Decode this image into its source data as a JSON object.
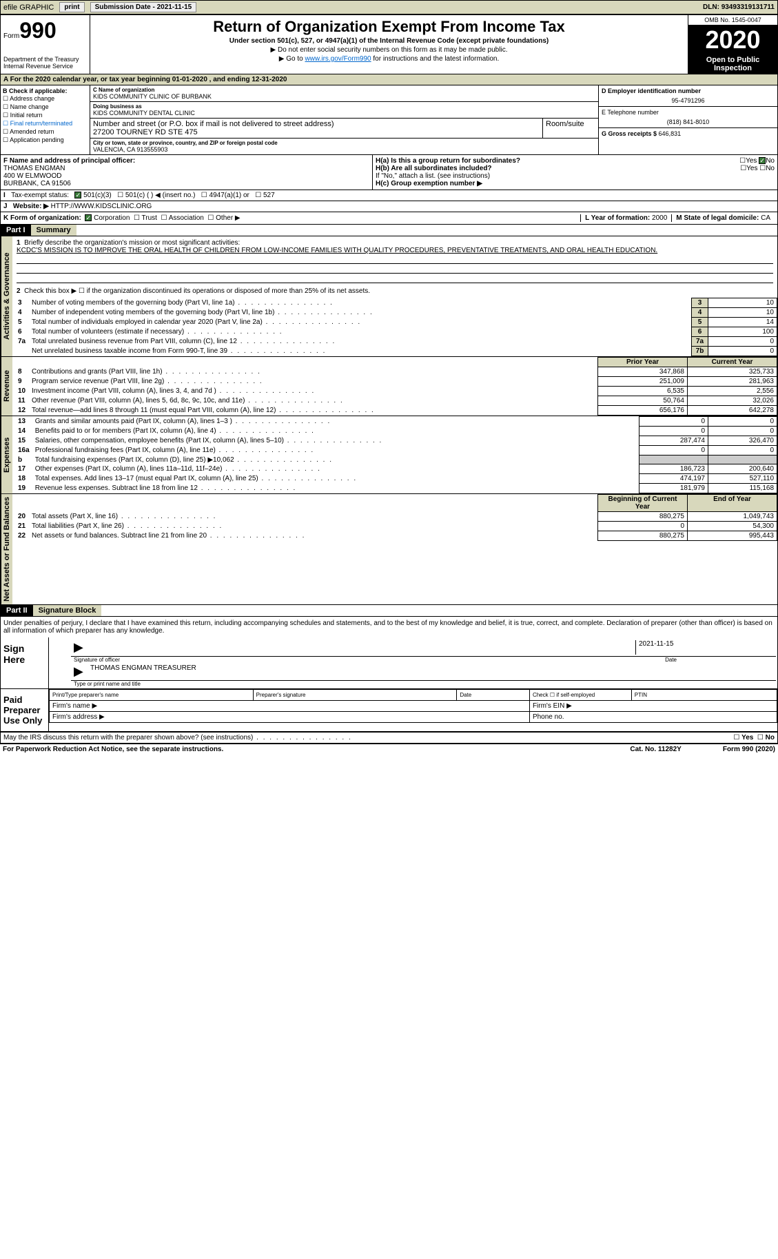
{
  "top": {
    "efile": "efile GRAPHIC",
    "print": "print",
    "subdate_lbl": "Submission Date - ",
    "subdate": "2021-11-15",
    "dln_lbl": "DLN: ",
    "dln": "93493319131711"
  },
  "header": {
    "form_word": "Form",
    "form_num": "990",
    "dept": "Department of the Treasury\nInternal Revenue Service",
    "title": "Return of Organization Exempt From Income Tax",
    "sub1": "Under section 501(c), 527, or 4947(a)(1) of the Internal Revenue Code (except private foundations)",
    "sub2": "▶ Do not enter social security numbers on this form as it may be made public.",
    "sub3_pre": "▶ Go to ",
    "sub3_link": "www.irs.gov/Form990",
    "sub3_post": " for instructions and the latest information.",
    "omb": "OMB No. 1545-0047",
    "year": "2020",
    "ofp": "Open to Public Inspection"
  },
  "line_a": "For the 2020 calendar year, or tax year beginning 01-01-2020   , and ending 12-31-2020",
  "box_b": {
    "title": "B Check if applicable:",
    "items": [
      "Address change",
      "Name change",
      "Initial return",
      "Final return/terminated",
      "Amended return",
      "Application pending"
    ]
  },
  "box_c": {
    "name_lbl": "C Name of organization",
    "name": "KIDS COMMUNITY CLINIC OF BURBANK",
    "dba_lbl": "Doing business as",
    "dba": "KIDS COMMUNITY DENTAL CLINIC",
    "street_lbl": "Number and street (or P.O. box if mail is not delivered to street address)",
    "room_lbl": "Room/suite",
    "street": "27200 TOURNEY RD STE 475",
    "city_lbl": "City or town, state or province, country, and ZIP or foreign postal code",
    "city": "VALENCIA, CA  913555903"
  },
  "box_d": {
    "ein_lbl": "D Employer identification number",
    "ein": "95-4791296",
    "phone_lbl": "E Telephone number",
    "phone": "(818) 841-8010",
    "gross_lbl": "G Gross receipts $ ",
    "gross": "646,831"
  },
  "box_f": {
    "lbl": "F Name and address of principal officer:",
    "name": "THOMAS ENGMAN",
    "addr1": "400 W ELMWOOD",
    "addr2": "BURBANK, CA  91506"
  },
  "box_h": {
    "ha_lbl": "H(a)  Is this a group return for subordinates?",
    "hb_lbl": "H(b)  Are all subordinates included?",
    "h_note": "If \"No,\" attach a list. (see instructions)",
    "hc_lbl": "H(c)  Group exemption number ▶"
  },
  "line_i": "Tax-exempt status:",
  "line_i_opts": [
    "501(c)(3)",
    "501(c) (   ) ◀ (insert no.)",
    "4947(a)(1) or",
    "527"
  ],
  "line_j_lbl": "Website: ▶  ",
  "line_j": "HTTP://WWW.KIDSCLINIC.ORG",
  "line_k": {
    "lbl": "K Form of organization:",
    "opts": [
      "Corporation",
      "Trust",
      "Association",
      "Other ▶"
    ],
    "l_lbl": "L Year of formation: ",
    "l_val": "2000",
    "m_lbl": "M State of legal domicile: ",
    "m_val": "CA"
  },
  "part1": {
    "hdr": "Part I",
    "title": "Summary",
    "q1": "Briefly describe the organization's mission or most significant activities:",
    "mission": "KCDC'S MISSION IS TO IMPROVE THE ORAL HEALTH OF CHILDREN FROM LOW-INCOME FAMILIES WITH QUALITY PROCEDURES, PREVENTATIVE TREATMENTS, AND ORAL HEALTH EDUCATION.",
    "q2": "Check this box ▶ ☐  if the organization discontinued its operations or disposed of more than 25% of its net assets.",
    "sidebar1": "Activities & Governance",
    "sidebar2": "Revenue",
    "sidebar3": "Expenses",
    "sidebar4": "Net Assets or Fund Balances",
    "lines_gov": [
      {
        "n": "3",
        "d": "Number of voting members of the governing body (Part VI, line 1a)",
        "ref": "3",
        "v": "10"
      },
      {
        "n": "4",
        "d": "Number of independent voting members of the governing body (Part VI, line 1b)",
        "ref": "4",
        "v": "10"
      },
      {
        "n": "5",
        "d": "Total number of individuals employed in calendar year 2020 (Part V, line 2a)",
        "ref": "5",
        "v": "14"
      },
      {
        "n": "6",
        "d": "Total number of volunteers (estimate if necessary)",
        "ref": "6",
        "v": "100"
      },
      {
        "n": "7a",
        "d": "Total unrelated business revenue from Part VIII, column (C), line 12",
        "ref": "7a",
        "v": "0"
      },
      {
        "n": "",
        "d": "Net unrelated business taxable income from Form 990-T, line 39",
        "ref": "7b",
        "v": "0"
      }
    ],
    "hdr_prior": "Prior Year",
    "hdr_curr": "Current Year",
    "lines_rev": [
      {
        "n": "8",
        "d": "Contributions and grants (Part VIII, line 1h)",
        "p": "347,868",
        "c": "325,733"
      },
      {
        "n": "9",
        "d": "Program service revenue (Part VIII, line 2g)",
        "p": "251,009",
        "c": "281,963"
      },
      {
        "n": "10",
        "d": "Investment income (Part VIII, column (A), lines 3, 4, and 7d )",
        "p": "6,535",
        "c": "2,556"
      },
      {
        "n": "11",
        "d": "Other revenue (Part VIII, column (A), lines 5, 6d, 8c, 9c, 10c, and 11e)",
        "p": "50,764",
        "c": "32,026"
      },
      {
        "n": "12",
        "d": "Total revenue—add lines 8 through 11 (must equal Part VIII, column (A), line 12)",
        "p": "656,176",
        "c": "642,278"
      }
    ],
    "lines_exp": [
      {
        "n": "13",
        "d": "Grants and similar amounts paid (Part IX, column (A), lines 1–3 )",
        "p": "0",
        "c": "0"
      },
      {
        "n": "14",
        "d": "Benefits paid to or for members (Part IX, column (A), line 4)",
        "p": "0",
        "c": "0"
      },
      {
        "n": "15",
        "d": "Salaries, other compensation, employee benefits (Part IX, column (A), lines 5–10)",
        "p": "287,474",
        "c": "326,470"
      },
      {
        "n": "16a",
        "d": "Professional fundraising fees (Part IX, column (A), line 11e)",
        "p": "0",
        "c": "0"
      },
      {
        "n": "b",
        "d": "Total fundraising expenses (Part IX, column (D), line 25) ▶10,062",
        "p": "",
        "c": "",
        "shaded": true
      },
      {
        "n": "17",
        "d": "Other expenses (Part IX, column (A), lines 11a–11d, 11f–24e)",
        "p": "186,723",
        "c": "200,640"
      },
      {
        "n": "18",
        "d": "Total expenses. Add lines 13–17 (must equal Part IX, column (A), line 25)",
        "p": "474,197",
        "c": "527,110"
      },
      {
        "n": "19",
        "d": "Revenue less expenses. Subtract line 18 from line 12",
        "p": "181,979",
        "c": "115,168"
      }
    ],
    "hdr_beg": "Beginning of Current Year",
    "hdr_end": "End of Year",
    "lines_net": [
      {
        "n": "20",
        "d": "Total assets (Part X, line 16)",
        "p": "880,275",
        "c": "1,049,743"
      },
      {
        "n": "21",
        "d": "Total liabilities (Part X, line 26)",
        "p": "0",
        "c": "54,300"
      },
      {
        "n": "22",
        "d": "Net assets or fund balances. Subtract line 21 from line 20",
        "p": "880,275",
        "c": "995,443"
      }
    ]
  },
  "part2": {
    "hdr": "Part II",
    "title": "Signature Block",
    "penalties": "Under penalties of perjury, I declare that I have examined this return, including accompanying schedules and statements, and to the best of my knowledge and belief, it is true, correct, and complete. Declaration of preparer (other than officer) is based on all information of which preparer has any knowledge.",
    "sign_here": "Sign Here",
    "sig_lbl": "Signature of officer",
    "sig_date": "2021-11-15",
    "date_lbl": "Date",
    "officer": "THOMAS ENGMAN  TREASURER",
    "officer_lbl": "Type or print name and title",
    "paid": "Paid Preparer Use Only",
    "prep_name": "Print/Type preparer's name",
    "prep_sig": "Preparer's signature",
    "prep_date": "Date",
    "prep_check": "Check ☐ if self-employed",
    "ptin": "PTIN",
    "firm_name": "Firm's name  ▶",
    "firm_ein": "Firm's EIN ▶",
    "firm_addr": "Firm's address ▶",
    "firm_phone": "Phone no.",
    "may_irs": "May the IRS discuss this return with the preparer shown above? (see instructions)"
  },
  "footer": {
    "pra": "For Paperwork Reduction Act Notice, see the separate instructions.",
    "cat": "Cat. No. 11282Y",
    "form": "Form 990 (2020)"
  }
}
